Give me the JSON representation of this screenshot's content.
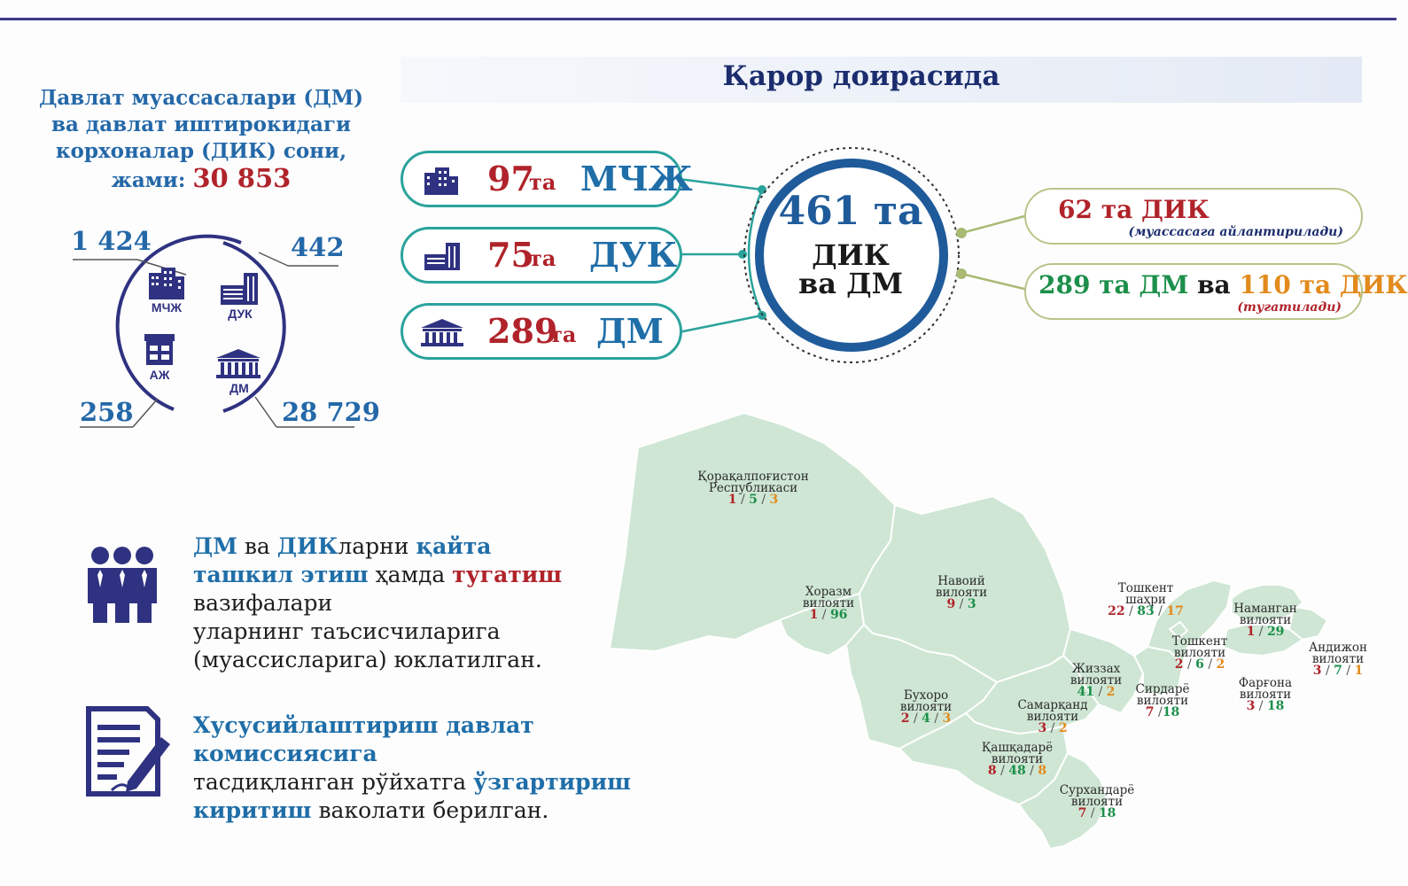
{
  "header": {
    "title": "Қарор доирасида"
  },
  "intro": {
    "line1": "Давлат муассасалари (ДМ)",
    "line2": "ва давлат иштирокидаги",
    "line3": "корхоналар (ДИК) сони,",
    "total_label": "жами:",
    "total_value": "30 853"
  },
  "breakdown": {
    "mchzh": {
      "value": "1 424",
      "label": "МЧЖ",
      "icon": "office-building-icon"
    },
    "duk": {
      "value": "442",
      "label": "ДУК",
      "icon": "factory-building-icon"
    },
    "azh": {
      "value": "258",
      "label": "АЖ",
      "icon": "shop-building-icon"
    },
    "dm": {
      "value": "28 729",
      "label": "ДМ",
      "icon": "government-building-icon"
    }
  },
  "pills": [
    {
      "num": "97",
      "ta": "та",
      "code": "МЧЖ",
      "icon": "office-building-icon"
    },
    {
      "num": "75",
      "ta": "та",
      "code": "ДУК",
      "icon": "factory-building-icon"
    },
    {
      "num": "289",
      "ta": "та",
      "code": "ДМ",
      "icon": "government-building-icon"
    }
  ],
  "center": {
    "num": "461 та",
    "line1": "ДИК",
    "line2": "ва ДМ"
  },
  "right": {
    "top": {
      "num": "62 та ДИК",
      "note": "(муассасага айлантирилади)"
    },
    "bottom": {
      "part1": "289 та ДМ",
      "part2": "ва",
      "part3": "110 та ДИК",
      "note": "(тугатилади)"
    }
  },
  "info1": {
    "w1": "ДМ",
    "w2": "ва",
    "w3": "ДИК",
    "w4": "ларни",
    "w5": "қайта ташкил этиш",
    "w6": "ҳамда",
    "w7": "тугатиш",
    "w8": "вазифалари",
    "line3": "уларнинг таъсисчиларига",
    "line4": "(муассисларига)  юклатилган.",
    "icon": "team-people-icon"
  },
  "info2": {
    "line1": "Хусусийлаштириш давлат комиссиясига",
    "w1": "тасдиқланган  рўйхатга",
    "w2": "ўзгартириш",
    "w3": "киритиш",
    "w4": "ваколати берилган.",
    "icon": "document-pen-icon"
  },
  "regions": [
    {
      "name1": "Қорақалпоғистон",
      "name2": "Республикаси",
      "a": "1",
      "b": "5",
      "c": "3"
    },
    {
      "name1": "Хоразм",
      "name2": "вилояти",
      "a": "1",
      "b": "96",
      "c": ""
    },
    {
      "name1": "Навоий",
      "name2": "вилояти",
      "a": "9",
      "b": "3",
      "c": ""
    },
    {
      "name1": "Бухоро",
      "name2": "вилояти",
      "a": "2",
      "b": "4",
      "c": "3"
    },
    {
      "name1": "Самарқанд",
      "name2": "вилояти",
      "a": "3",
      "b": "2",
      "c": ""
    },
    {
      "name1": "Жиззах",
      "name2": "вилояти",
      "a": "41",
      "b": "2",
      "c": ""
    },
    {
      "name1": "Қашқадарё",
      "name2": "вилояти",
      "a": "8",
      "b": "48",
      "c": "8"
    },
    {
      "name1": "Сурхандарё",
      "name2": "вилояти",
      "a": "7",
      "b": "18",
      "c": ""
    },
    {
      "name1": "Сирдарё",
      "name2": "вилояти",
      "a": "7",
      "b": "18",
      "c": ""
    },
    {
      "name1": "Тошкент",
      "name2": "шаҳри",
      "a": "22",
      "b": "83",
      "c": "17"
    },
    {
      "name1": "Тошкент",
      "name2": "вилояти",
      "a": "2",
      "b": "6",
      "c": "2"
    },
    {
      "name1": "Наманган",
      "name2": "вилояти",
      "a": "1",
      "b": "29",
      "c": ""
    },
    {
      "name1": "Андижон",
      "name2": "вилояти",
      "a": "3",
      "b": "7",
      "c": "1"
    },
    {
      "name1": "Фарғона",
      "name2": "вилояти",
      "a": "3",
      "b": "18",
      "c": ""
    }
  ]
}
